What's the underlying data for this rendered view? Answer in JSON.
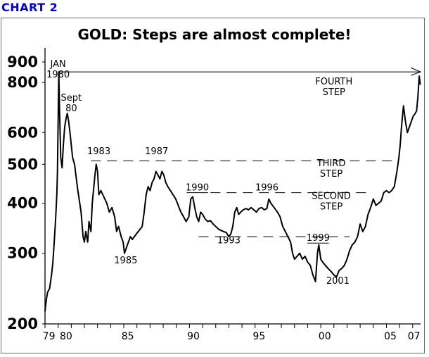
{
  "header": {
    "chart_label": "CHART 2"
  },
  "chart_data": {
    "type": "line",
    "title": "GOLD: Steps are almost complete!",
    "xlabel": "",
    "ylabel": "",
    "y_scale": "log",
    "ylim": [
      200,
      900
    ],
    "xlim": [
      1979.0,
      2007.6
    ],
    "y_ticks": [
      {
        "value": 200,
        "label": "200"
      },
      {
        "value": 300,
        "label": "300"
      },
      {
        "value": 400,
        "label": "400"
      },
      {
        "value": 500,
        "label": "500"
      },
      {
        "value": 600,
        "label": "600"
      },
      {
        "value": 800,
        "label": "800"
      },
      {
        "value": 900,
        "label": "900"
      }
    ],
    "x_tick_labels": [
      {
        "value": 1979.3,
        "label": "79"
      },
      {
        "value": 1980.6,
        "label": "80"
      },
      {
        "value": 1985.3,
        "label": "85"
      },
      {
        "value": 1990.3,
        "label": "90"
      },
      {
        "value": 1995.3,
        "label": "95"
      },
      {
        "value": 2000.3,
        "label": "00"
      },
      {
        "value": 2005.3,
        "label": "05"
      },
      {
        "value": 2007.1,
        "label": "07"
      }
    ],
    "series": [
      {
        "points": [
          [
            1979.0,
            215
          ],
          [
            1979.1,
            230
          ],
          [
            1979.2,
            240
          ],
          [
            1979.35,
            245
          ],
          [
            1979.5,
            265
          ],
          [
            1979.6,
            285
          ],
          [
            1979.7,
            320
          ],
          [
            1979.8,
            360
          ],
          [
            1979.9,
            420
          ],
          [
            1979.95,
            480
          ],
          [
            1980.05,
            850
          ],
          [
            1980.1,
            700
          ],
          [
            1980.2,
            520
          ],
          [
            1980.3,
            490
          ],
          [
            1980.4,
            560
          ],
          [
            1980.5,
            620
          ],
          [
            1980.6,
            650
          ],
          [
            1980.7,
            670
          ],
          [
            1980.8,
            640
          ],
          [
            1980.9,
            600
          ],
          [
            1981.0,
            560
          ],
          [
            1981.1,
            520
          ],
          [
            1981.25,
            500
          ],
          [
            1981.35,
            470
          ],
          [
            1981.5,
            430
          ],
          [
            1981.6,
            410
          ],
          [
            1981.75,
            380
          ],
          [
            1981.9,
            330
          ],
          [
            1982.0,
            320
          ],
          [
            1982.1,
            340
          ],
          [
            1982.25,
            320
          ],
          [
            1982.35,
            360
          ],
          [
            1982.5,
            340
          ],
          [
            1982.6,
            400
          ],
          [
            1982.8,
            470
          ],
          [
            1982.9,
            500
          ],
          [
            1983.0,
            480
          ],
          [
            1983.1,
            420
          ],
          [
            1983.25,
            430
          ],
          [
            1983.4,
            420
          ],
          [
            1983.55,
            410
          ],
          [
            1983.7,
            400
          ],
          [
            1983.9,
            380
          ],
          [
            1984.1,
            390
          ],
          [
            1984.3,
            370
          ],
          [
            1984.45,
            340
          ],
          [
            1984.6,
            350
          ],
          [
            1984.8,
            330
          ],
          [
            1984.95,
            320
          ],
          [
            1985.05,
            300
          ],
          [
            1985.2,
            310
          ],
          [
            1985.35,
            320
          ],
          [
            1985.5,
            330
          ],
          [
            1985.65,
            325
          ],
          [
            1985.8,
            330
          ],
          [
            1985.95,
            335
          ],
          [
            1986.1,
            340
          ],
          [
            1986.25,
            345
          ],
          [
            1986.4,
            350
          ],
          [
            1986.55,
            380
          ],
          [
            1986.7,
            420
          ],
          [
            1986.85,
            440
          ],
          [
            1987.0,
            430
          ],
          [
            1987.15,
            450
          ],
          [
            1987.3,
            460
          ],
          [
            1987.45,
            480
          ],
          [
            1987.6,
            470
          ],
          [
            1987.75,
            460
          ],
          [
            1987.9,
            480
          ],
          [
            1988.05,
            470
          ],
          [
            1988.2,
            450
          ],
          [
            1988.35,
            440
          ],
          [
            1988.55,
            430
          ],
          [
            1988.75,
            420
          ],
          [
            1988.95,
            410
          ],
          [
            1989.15,
            395
          ],
          [
            1989.35,
            380
          ],
          [
            1989.55,
            370
          ],
          [
            1989.75,
            360
          ],
          [
            1989.95,
            370
          ],
          [
            1990.1,
            410
          ],
          [
            1990.25,
            415
          ],
          [
            1990.4,
            390
          ],
          [
            1990.55,
            370
          ],
          [
            1990.7,
            360
          ],
          [
            1990.85,
            380
          ],
          [
            1991.0,
            375
          ],
          [
            1991.2,
            365
          ],
          [
            1991.4,
            360
          ],
          [
            1991.6,
            362
          ],
          [
            1991.8,
            355
          ],
          [
            1992.0,
            350
          ],
          [
            1992.2,
            345
          ],
          [
            1992.4,
            342
          ],
          [
            1992.6,
            340
          ],
          [
            1992.8,
            338
          ],
          [
            1993.0,
            330
          ],
          [
            1993.15,
            335
          ],
          [
            1993.3,
            350
          ],
          [
            1993.45,
            380
          ],
          [
            1993.6,
            390
          ],
          [
            1993.75,
            375
          ],
          [
            1993.9,
            380
          ],
          [
            1994.1,
            385
          ],
          [
            1994.3,
            388
          ],
          [
            1994.5,
            385
          ],
          [
            1994.7,
            390
          ],
          [
            1994.9,
            385
          ],
          [
            1995.1,
            380
          ],
          [
            1995.3,
            388
          ],
          [
            1995.5,
            390
          ],
          [
            1995.7,
            385
          ],
          [
            1995.9,
            388
          ],
          [
            1996.05,
            410
          ],
          [
            1996.2,
            400
          ],
          [
            1996.45,
            390
          ],
          [
            1996.7,
            380
          ],
          [
            1996.9,
            370
          ],
          [
            1997.1,
            350
          ],
          [
            1997.3,
            340
          ],
          [
            1997.5,
            330
          ],
          [
            1997.7,
            320
          ],
          [
            1997.85,
            300
          ],
          [
            1998.0,
            290
          ],
          [
            1998.2,
            295
          ],
          [
            1998.4,
            300
          ],
          [
            1998.6,
            290
          ],
          [
            1998.8,
            295
          ],
          [
            1999.0,
            285
          ],
          [
            1999.2,
            280
          ],
          [
            1999.4,
            265
          ],
          [
            1999.6,
            255
          ],
          [
            1999.75,
            300
          ],
          [
            1999.85,
            315
          ],
          [
            2000.0,
            290
          ],
          [
            2000.15,
            285
          ],
          [
            2000.35,
            280
          ],
          [
            2000.55,
            275
          ],
          [
            2000.8,
            270
          ],
          [
            2001.0,
            265
          ],
          [
            2001.2,
            262
          ],
          [
            2001.4,
            272
          ],
          [
            2001.6,
            275
          ],
          [
            2001.8,
            280
          ],
          [
            2002.0,
            290
          ],
          [
            2002.2,
            305
          ],
          [
            2002.4,
            315
          ],
          [
            2002.6,
            320
          ],
          [
            2002.8,
            330
          ],
          [
            2003.0,
            355
          ],
          [
            2003.2,
            340
          ],
          [
            2003.4,
            350
          ],
          [
            2003.6,
            375
          ],
          [
            2003.8,
            390
          ],
          [
            2004.0,
            410
          ],
          [
            2004.2,
            395
          ],
          [
            2004.4,
            400
          ],
          [
            2004.6,
            405
          ],
          [
            2004.8,
            425
          ],
          [
            2005.0,
            430
          ],
          [
            2005.2,
            425
          ],
          [
            2005.4,
            430
          ],
          [
            2005.6,
            440
          ],
          [
            2005.8,
            480
          ],
          [
            2005.95,
            520
          ],
          [
            2006.05,
            560
          ],
          [
            2006.15,
            620
          ],
          [
            2006.3,
            700
          ],
          [
            2006.45,
            640
          ],
          [
            2006.6,
            600
          ],
          [
            2006.75,
            620
          ],
          [
            2006.9,
            640
          ],
          [
            2007.05,
            660
          ],
          [
            2007.2,
            670
          ],
          [
            2007.3,
            680
          ],
          [
            2007.4,
            740
          ],
          [
            2007.5,
            830
          ],
          [
            2007.58,
            790
          ]
        ]
      }
    ],
    "reference_lines": [
      {
        "style": "solid",
        "value": 850,
        "x_start": 1980.0,
        "x_end": 2007.6
      },
      {
        "style": "dashed",
        "value": 510,
        "x_start": 1982.5,
        "x_end": 2005.6
      },
      {
        "style": "dashed",
        "value": 425,
        "x_start": 1991.6,
        "x_end": 2003.6
      },
      {
        "style": "dashed",
        "value": 330,
        "x_start": 1990.7,
        "x_end": 2002.2
      }
    ],
    "annotations": [
      {
        "lines": [
          "JAN",
          "1980"
        ],
        "x": 1980.0,
        "y": 875
      },
      {
        "lines": [
          "Sept",
          "80"
        ],
        "x": 1981.0,
        "y": 720
      },
      {
        "lines": [
          "1983"
        ],
        "x": 1983.1,
        "y": 530
      },
      {
        "lines": [
          "1987"
        ],
        "x": 1987.5,
        "y": 530
      },
      {
        "lines": [
          "1990"
        ],
        "x": 1990.6,
        "y": 430,
        "underline": true
      },
      {
        "lines": [
          "1996"
        ],
        "x": 1995.9,
        "y": 430
      },
      {
        "lines": [
          "1993"
        ],
        "x": 1993.0,
        "y": 318
      },
      {
        "lines": [
          "1985"
        ],
        "x": 1985.15,
        "y": 283
      },
      {
        "lines": [
          "1999"
        ],
        "x": 1999.8,
        "y": 322,
        "underline": true
      },
      {
        "lines": [
          "2001"
        ],
        "x": 2001.3,
        "y": 252
      },
      {
        "lines": [
          "FOURTH",
          "STEP"
        ],
        "x": 2001.0,
        "y": 790
      },
      {
        "lines": [
          "THIRD",
          "STEP"
        ],
        "x": 2000.8,
        "y": 495
      },
      {
        "lines": [
          "SECOND",
          "STEP"
        ],
        "x": 2000.8,
        "y": 410
      }
    ]
  }
}
